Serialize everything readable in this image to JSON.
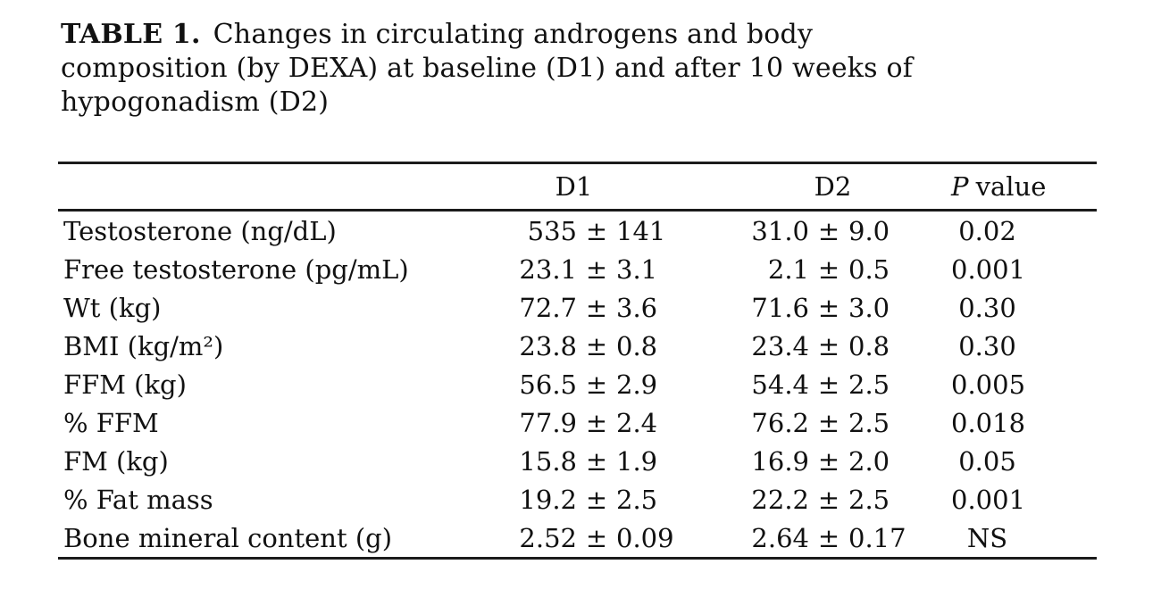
{
  "title": {
    "label": "TABLE 1.",
    "line1_rest": "Changes in circulating androgens and body",
    "line2": "composition (by DEXA) at baseline (D1) and after 10 weeks of",
    "line3": "hypogonadism (D2)"
  },
  "table": {
    "pm_sign": "±",
    "header": {
      "d1": "D1",
      "d2": "D2",
      "p_italic": "P",
      "p_rest": "value"
    },
    "rows": [
      {
        "label": "Testosterone (ng/dL)",
        "d1_mean": "535",
        "d1_sd": "141",
        "d2_mean": "31.0",
        "d2_sd": "9.0",
        "p": "0.02"
      },
      {
        "label": "Free testosterone (pg/mL)",
        "d1_mean": "23.1",
        "d1_sd": "3.1",
        "d2_mean": "2.1",
        "d2_sd": "0.5",
        "p": "0.001"
      },
      {
        "label": "Wt (kg)",
        "d1_mean": "72.7",
        "d1_sd": "3.6",
        "d2_mean": "71.6",
        "d2_sd": "3.0",
        "p": "0.30"
      },
      {
        "label": "BMI (kg/m²)",
        "d1_mean": "23.8",
        "d1_sd": "0.8",
        "d2_mean": "23.4",
        "d2_sd": "0.8",
        "p": "0.30"
      },
      {
        "label": "FFM (kg)",
        "d1_mean": "56.5",
        "d1_sd": "2.9",
        "d2_mean": "54.4",
        "d2_sd": "2.5",
        "p": "0.005"
      },
      {
        "label": "% FFM",
        "d1_mean": "77.9",
        "d1_sd": "2.4",
        "d2_mean": "76.2",
        "d2_sd": "2.5",
        "p": "0.018"
      },
      {
        "label": "FM (kg)",
        "d1_mean": "15.8",
        "d1_sd": "1.9",
        "d2_mean": "16.9",
        "d2_sd": "2.0",
        "p": "0.05"
      },
      {
        "label": "% Fat mass",
        "d1_mean": "19.2",
        "d1_sd": "2.5",
        "d2_mean": "22.2",
        "d2_sd": "2.5",
        "p": "0.001"
      },
      {
        "label": "Bone mineral content (g)",
        "d1_mean": "2.52",
        "d1_sd": "0.09",
        "d2_mean": "2.64",
        "d2_sd": "0.17",
        "p": "NS"
      }
    ]
  }
}
